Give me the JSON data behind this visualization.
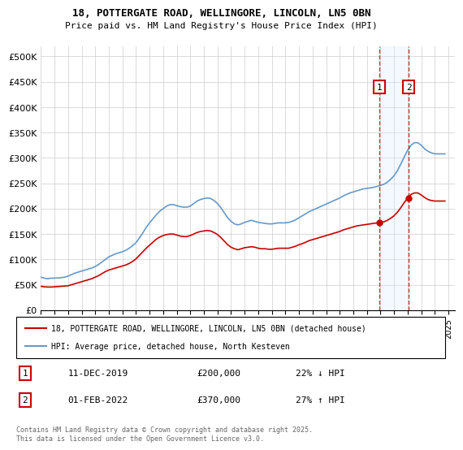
{
  "title": "18, POTTERGATE ROAD, WELLINGORE, LINCOLN, LN5 0BN",
  "subtitle": "Price paid vs. HM Land Registry's House Price Index (HPI)",
  "ylabel_ticks": [
    "£0",
    "£50K",
    "£100K",
    "£150K",
    "£200K",
    "£250K",
    "£300K",
    "£350K",
    "£400K",
    "£450K",
    "£500K"
  ],
  "ytick_values": [
    0,
    50000,
    100000,
    150000,
    200000,
    250000,
    300000,
    350000,
    400000,
    450000,
    500000
  ],
  "ylim": [
    0,
    520000
  ],
  "xlim_start": 1995.0,
  "xlim_end": 2025.5,
  "red_line_color": "#cc0000",
  "blue_line_color": "#6699cc",
  "shade_color": "#ddeeff",
  "marker1_x": 2019.92,
  "marker2_x": 2022.08,
  "event1_date": "11-DEC-2019",
  "event1_price": "£200,000",
  "event1_hpi": "22% ↓ HPI",
  "event2_date": "01-FEB-2022",
  "event2_price": "£370,000",
  "event2_hpi": "27% ↑ HPI",
  "legend_label_red": "18, POTTERGATE ROAD, WELLINGORE, LINCOLN, LN5 0BN (detached house)",
  "legend_label_blue": "HPI: Average price, detached house, North Kesteven",
  "footer": "Contains HM Land Registry data © Crown copyright and database right 2025.\nThis data is licensed under the Open Government Licence v3.0.",
  "hpi_data": {
    "years": [
      1995.0,
      1995.25,
      1995.5,
      1995.75,
      1996.0,
      1996.25,
      1996.5,
      1996.75,
      1997.0,
      1997.25,
      1997.5,
      1997.75,
      1998.0,
      1998.25,
      1998.5,
      1998.75,
      1999.0,
      1999.25,
      1999.5,
      1999.75,
      2000.0,
      2000.25,
      2000.5,
      2000.75,
      2001.0,
      2001.25,
      2001.5,
      2001.75,
      2002.0,
      2002.25,
      2002.5,
      2002.75,
      2003.0,
      2003.25,
      2003.5,
      2003.75,
      2004.0,
      2004.25,
      2004.5,
      2004.75,
      2005.0,
      2005.25,
      2005.5,
      2005.75,
      2006.0,
      2006.25,
      2006.5,
      2006.75,
      2007.0,
      2007.25,
      2007.5,
      2007.75,
      2008.0,
      2008.25,
      2008.5,
      2008.75,
      2009.0,
      2009.25,
      2009.5,
      2009.75,
      2010.0,
      2010.25,
      2010.5,
      2010.75,
      2011.0,
      2011.25,
      2011.5,
      2011.75,
      2012.0,
      2012.25,
      2012.5,
      2012.75,
      2013.0,
      2013.25,
      2013.5,
      2013.75,
      2014.0,
      2014.25,
      2014.5,
      2014.75,
      2015.0,
      2015.25,
      2015.5,
      2015.75,
      2016.0,
      2016.25,
      2016.5,
      2016.75,
      2017.0,
      2017.25,
      2017.5,
      2017.75,
      2018.0,
      2018.25,
      2018.5,
      2018.75,
      2019.0,
      2019.25,
      2019.5,
      2019.75,
      2020.0,
      2020.25,
      2020.5,
      2020.75,
      2021.0,
      2021.25,
      2021.5,
      2021.75,
      2022.0,
      2022.25,
      2022.5,
      2022.75,
      2023.0,
      2023.25,
      2023.5,
      2023.75,
      2024.0,
      2024.25,
      2024.5,
      2024.75
    ],
    "values": [
      65000,
      63000,
      62000,
      63000,
      63000,
      63500,
      64000,
      65000,
      67000,
      70000,
      73000,
      75000,
      77000,
      79000,
      81000,
      83000,
      86000,
      90000,
      95000,
      100000,
      105000,
      108000,
      111000,
      113000,
      115000,
      118000,
      122000,
      127000,
      133000,
      142000,
      152000,
      163000,
      172000,
      180000,
      188000,
      195000,
      200000,
      205000,
      208000,
      208000,
      206000,
      204000,
      203000,
      203000,
      205000,
      210000,
      215000,
      218000,
      220000,
      221000,
      220000,
      216000,
      210000,
      202000,
      192000,
      182000,
      175000,
      170000,
      168000,
      170000,
      173000,
      175000,
      177000,
      175000,
      173000,
      172000,
      171000,
      170000,
      170000,
      171000,
      172000,
      172000,
      172000,
      173000,
      175000,
      178000,
      182000,
      186000,
      190000,
      194000,
      197000,
      200000,
      203000,
      206000,
      209000,
      212000,
      215000,
      218000,
      221000,
      225000,
      228000,
      231000,
      233000,
      235000,
      237000,
      239000,
      240000,
      241000,
      242000,
      244000,
      246000,
      248000,
      252000,
      258000,
      265000,
      275000,
      288000,
      302000,
      315000,
      325000,
      330000,
      330000,
      325000,
      318000,
      313000,
      310000,
      308000,
      308000,
      308000,
      308000
    ]
  },
  "red_data": {
    "years": [
      1995.0,
      1995.25,
      1995.5,
      1995.75,
      1996.0,
      1996.25,
      1996.5,
      1996.75,
      1997.0,
      1997.25,
      1997.5,
      1997.75,
      1998.0,
      1998.25,
      1998.5,
      1998.75,
      1999.0,
      1999.25,
      1999.5,
      1999.75,
      2000.0,
      2000.25,
      2000.5,
      2000.75,
      2001.0,
      2001.25,
      2001.5,
      2001.75,
      2002.0,
      2002.25,
      2002.5,
      2002.75,
      2003.0,
      2003.25,
      2003.5,
      2003.75,
      2004.0,
      2004.25,
      2004.5,
      2004.75,
      2005.0,
      2005.25,
      2005.5,
      2005.75,
      2006.0,
      2006.25,
      2006.5,
      2006.75,
      2007.0,
      2007.25,
      2007.5,
      2007.75,
      2008.0,
      2008.25,
      2008.5,
      2008.75,
      2009.0,
      2009.25,
      2009.5,
      2009.75,
      2010.0,
      2010.25,
      2010.5,
      2010.75,
      2011.0,
      2011.25,
      2011.5,
      2011.75,
      2012.0,
      2012.25,
      2012.5,
      2012.75,
      2013.0,
      2013.25,
      2013.5,
      2013.75,
      2014.0,
      2014.25,
      2014.5,
      2014.75,
      2015.0,
      2015.25,
      2015.5,
      2015.75,
      2016.0,
      2016.25,
      2016.5,
      2016.75,
      2017.0,
      2017.25,
      2017.5,
      2017.75,
      2018.0,
      2018.25,
      2018.5,
      2018.75,
      2019.0,
      2019.25,
      2019.5,
      2019.75,
      2020.0,
      2020.25,
      2020.5,
      2020.75,
      2021.0,
      2021.25,
      2021.5,
      2021.75,
      2022.0,
      2022.25,
      2022.5,
      2022.75,
      2023.0,
      2023.25,
      2023.5,
      2023.75,
      2024.0,
      2024.25,
      2024.5,
      2024.75
    ],
    "values": [
      47000,
      46000,
      45500,
      45500,
      46000,
      46500,
      47000,
      47500,
      48000,
      50000,
      52000,
      54000,
      56000,
      58000,
      60000,
      62000,
      65000,
      68000,
      72000,
      76000,
      79000,
      81000,
      83000,
      85000,
      87000,
      89000,
      92000,
      96000,
      101000,
      108000,
      115000,
      122000,
      128000,
      134000,
      140000,
      144000,
      147000,
      149000,
      150000,
      150000,
      148000,
      146000,
      145000,
      145000,
      147000,
      150000,
      153000,
      155000,
      156000,
      157000,
      156000,
      153000,
      149000,
      143000,
      136000,
      129000,
      124000,
      121000,
      119000,
      121000,
      123000,
      124000,
      125000,
      124000,
      122000,
      121000,
      121000,
      120000,
      120000,
      121000,
      122000,
      122000,
      122000,
      122000,
      124000,
      126000,
      129000,
      131000,
      134000,
      137000,
      139000,
      141000,
      143000,
      145000,
      147000,
      149000,
      151000,
      153000,
      155000,
      158000,
      160000,
      162000,
      164000,
      166000,
      167000,
      168000,
      169000,
      170000,
      171000,
      172000,
      173000,
      174000,
      177000,
      181000,
      186000,
      193000,
      202000,
      212000,
      221000,
      228000,
      231000,
      231000,
      227000,
      222000,
      218000,
      216000,
      215000,
      215000,
      215000,
      215000
    ]
  }
}
